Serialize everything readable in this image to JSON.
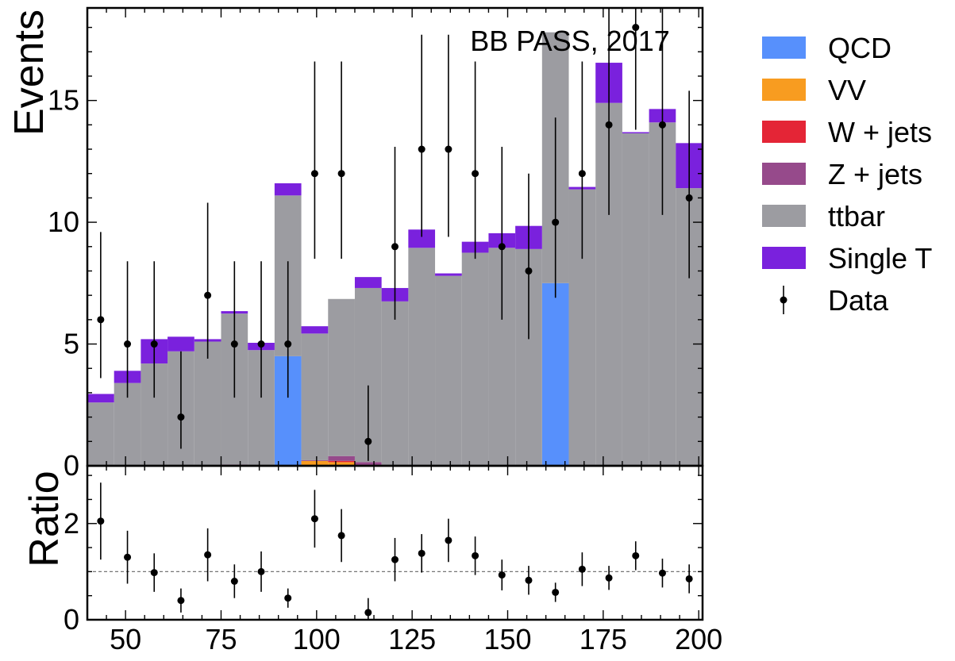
{
  "chart_data": {
    "type": "bar",
    "stacked": true,
    "annotation": "BB PASS, 2017",
    "ylabel": "Events",
    "ratio_ylabel": "Ratio",
    "xlim": [
      40,
      201
    ],
    "ylim": [
      0,
      18.8
    ],
    "ratio_ylim": [
      0,
      3.2
    ],
    "ratio_reference": 1,
    "x_ticks": [
      "50",
      "75",
      "100",
      "125",
      "150",
      "175",
      "200"
    ],
    "y_ticks": [
      "0",
      "5",
      "10",
      "15"
    ],
    "ratio_y_ticks": [
      "0",
      "2"
    ],
    "bin_edges": [
      40,
      47,
      54,
      61,
      68,
      75,
      82,
      89,
      96,
      103,
      110,
      117,
      124,
      131,
      138,
      145,
      152,
      159,
      166,
      173,
      180,
      187,
      194,
      201
    ],
    "series": [
      {
        "name": "QCD",
        "color": "#5790fc",
        "values": [
          0,
          0,
          0,
          0,
          0,
          0,
          0,
          4.5,
          0,
          0,
          0,
          0,
          0,
          0,
          0,
          0,
          0,
          7.5,
          0,
          0,
          0,
          0,
          0
        ]
      },
      {
        "name": "VV",
        "color": "#f89c20",
        "values": [
          0,
          0,
          0,
          0,
          0,
          0,
          0,
          0,
          0.2,
          0.15,
          0,
          0,
          0,
          0,
          0,
          0,
          0,
          0,
          0,
          0,
          0,
          0,
          0
        ]
      },
      {
        "name": "W + jets",
        "color": "#e42536",
        "values": [
          0,
          0,
          0,
          0,
          0,
          0,
          0,
          0,
          0,
          0.05,
          0,
          0,
          0,
          0,
          0,
          0,
          0,
          0,
          0,
          0,
          0,
          0,
          0
        ]
      },
      {
        "name": "Z + jets",
        "color": "#964a8b",
        "values": [
          0,
          0,
          0,
          0,
          0,
          0.05,
          0,
          0,
          0.03,
          0.2,
          0.15,
          0,
          0,
          0,
          0,
          0,
          0,
          0,
          0,
          0,
          0,
          0,
          0
        ]
      },
      {
        "name": "ttbar",
        "color": "#9c9ca1",
        "values": [
          2.6,
          3.4,
          4.2,
          4.7,
          5.1,
          6.2,
          4.75,
          6.6,
          5.2,
          6.45,
          7.15,
          6.75,
          8.95,
          7.8,
          8.75,
          8.95,
          8.9,
          10.3,
          11.35,
          14.9,
          13.65,
          14.1,
          11.4
        ]
      },
      {
        "name": "Single T",
        "color": "#7a21dd",
        "values": [
          0.35,
          0.5,
          1.0,
          0.6,
          0.1,
          0.1,
          0.3,
          0.5,
          0.3,
          0,
          0.45,
          0.55,
          0.75,
          0.1,
          0.45,
          0.6,
          0.95,
          0,
          0.1,
          1.65,
          0.05,
          0.55,
          1.85
        ]
      }
    ],
    "data": {
      "name": "Data",
      "x": [
        43.5,
        50.5,
        57.5,
        64.5,
        71.5,
        78.5,
        85.5,
        92.5,
        99.5,
        106.5,
        113.5,
        120.5,
        127.5,
        134.5,
        141.5,
        148.5,
        155.5,
        162.5,
        169.5,
        176.5,
        183.5,
        190.5,
        197.5
      ],
      "values": [
        6,
        5,
        5,
        2,
        7,
        5,
        5,
        5,
        12,
        12,
        1,
        9,
        13,
        13,
        12,
        9,
        8,
        10,
        12,
        14,
        18,
        14,
        11
      ],
      "err_low": [
        2.4,
        2.2,
        2.2,
        1.3,
        2.6,
        2.2,
        2.2,
        2.2,
        3.5,
        3.5,
        0.8,
        3.0,
        3.6,
        3.6,
        3.5,
        3.0,
        2.8,
        3.1,
        3.5,
        3.7,
        4.2,
        3.7,
        3.3
      ],
      "err_high": [
        3.6,
        3.4,
        3.4,
        2.7,
        3.8,
        3.4,
        3.4,
        3.4,
        4.6,
        4.6,
        2.3,
        4.1,
        4.7,
        4.7,
        4.6,
        4.1,
        4.0,
        4.3,
        4.6,
        4.8,
        5.3,
        4.8,
        4.4
      ]
    },
    "ratio": {
      "values": [
        2.05,
        1.3,
        0.98,
        0.4,
        1.35,
        0.8,
        1.0,
        0.45,
        2.1,
        1.75,
        0.15,
        1.25,
        1.38,
        1.65,
        1.33,
        0.93,
        0.82,
        0.57,
        1.05,
        0.87,
        1.33,
        0.97,
        0.85
      ],
      "err": [
        0.8,
        0.55,
        0.4,
        0.25,
        0.55,
        0.35,
        0.42,
        0.2,
        0.6,
        0.55,
        0.3,
        0.45,
        0.4,
        0.45,
        0.4,
        0.32,
        0.3,
        0.2,
        0.35,
        0.25,
        0.3,
        0.3,
        0.3
      ]
    }
  }
}
